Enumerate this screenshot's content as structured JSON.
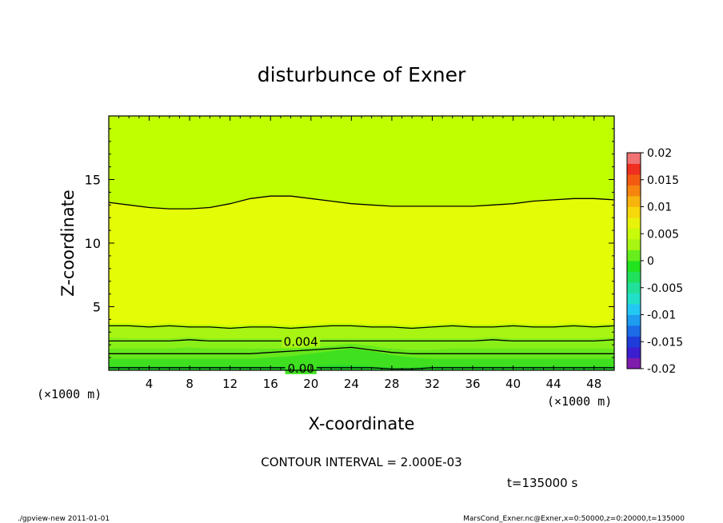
{
  "chart_data": {
    "type": "heatmap",
    "title": "disturbunce of Exner",
    "xlabel": "X-coordinate",
    "ylabel": "Z-coordinate",
    "x_unit_left": "(×1000 m)",
    "x_unit_right": "(×1000 m)",
    "xlim": [
      0,
      50
    ],
    "ylim": [
      0,
      20
    ],
    "x_ticks": [
      "4",
      "8",
      "12",
      "16",
      "20",
      "24",
      "28",
      "32",
      "36",
      "40",
      "44",
      "48"
    ],
    "y_ticks": [
      "5",
      "10",
      "15"
    ],
    "contour_interval_text": "CONTOUR INTERVAL = 2.000E-03",
    "time_text": "t=135000 s",
    "footer_left": "./gpview-new   2011-01-01",
    "footer_right": "MarsCond_Exner.nc@Exner,x=0:50000,z=0:20000,t=135000",
    "contour_labels": [
      "0.004",
      "0.00"
    ],
    "colorbar": {
      "labels": [
        "0.02",
        "0.015",
        "0.01",
        "0.005",
        "0",
        "-0.005",
        "-0.01",
        "-0.015",
        "-0.02"
      ],
      "levels": [
        -0.02,
        -0.015,
        -0.01,
        -0.005,
        0,
        0.005,
        0.01,
        0.015,
        0.02
      ],
      "colors": [
        "#7f1cae",
        "#3b1ecf",
        "#1e3cd9",
        "#1b6ce6",
        "#1d9cf0",
        "#22c8f2",
        "#22e0c8",
        "#22e09a",
        "#20e05c",
        "#22e21e",
        "#66ee1c",
        "#a8f412",
        "#c8fa0a",
        "#e8f20a",
        "#f6d80c",
        "#f7b40e",
        "#f5850f",
        "#f25a12",
        "#ef3020",
        "#f07272"
      ]
    },
    "bands": [
      {
        "level": 0.006,
        "color": "#f1ff04",
        "z_top": [
          8.8,
          8.6,
          8.2,
          7.7,
          7.8,
          7.9,
          8.0,
          8.4,
          9.5,
          9.0,
          8.6,
          8.5,
          8.4,
          8.6,
          8.7,
          8.8,
          8.7,
          8.6,
          8.4,
          8.6,
          9.0,
          9.4,
          9.6,
          9.7,
          9.5,
          9.3
        ],
        "z_bottom": [
          4.5,
          4.5,
          4.4,
          4.5,
          4.4,
          4.4,
          4.3,
          4.4,
          4.4,
          4.3,
          4.4,
          4.5,
          4.5,
          4.4,
          4.4,
          4.3,
          4.4,
          4.5,
          4.4,
          4.4,
          4.5,
          4.4,
          4.4,
          4.5,
          4.4,
          4.4
        ]
      },
      {
        "level": 0.005,
        "color": "#e4fc06",
        "z_top": [
          13.2,
          13.0,
          12.8,
          12.7,
          12.7,
          12.8,
          13.1,
          13.5,
          13.7,
          13.7,
          13.5,
          13.3,
          13.1,
          13.0,
          12.9,
          12.9,
          12.9,
          12.9,
          12.9,
          13.0,
          13.1,
          13.3,
          13.4,
          13.5,
          13.5,
          13.4
        ],
        "z_bottom": [
          3.7,
          3.7,
          3.6,
          3.7,
          3.6,
          3.6,
          3.5,
          3.6,
          3.6,
          3.5,
          3.6,
          3.7,
          3.7,
          3.6,
          3.6,
          3.5,
          3.6,
          3.7,
          3.6,
          3.6,
          3.7,
          3.6,
          3.6,
          3.7,
          3.6,
          3.7
        ]
      },
      {
        "level": 0.004,
        "color": "#a8f412",
        "z": [
          3.5,
          3.5,
          3.4,
          3.5,
          3.4,
          3.4,
          3.3,
          3.4,
          3.4,
          3.3,
          3.4,
          3.5,
          3.5,
          3.4,
          3.4,
          3.3,
          3.4,
          3.5,
          3.4,
          3.4,
          3.5,
          3.4,
          3.4,
          3.5,
          3.4,
          3.5
        ]
      },
      {
        "level": 0.003,
        "color": "#88ef18",
        "z": [
          2.6,
          2.5,
          2.5,
          2.5,
          2.6,
          2.5,
          2.5,
          2.5,
          2.5,
          2.5,
          2.5,
          2.5,
          2.5,
          2.5,
          2.5,
          2.5,
          2.5,
          2.5,
          2.5,
          2.6,
          2.5,
          2.5,
          2.5,
          2.5,
          2.5,
          2.6
        ]
      },
      {
        "level": 0.002,
        "color": "#66e81c",
        "z": [
          1.7,
          1.7,
          1.7,
          1.7,
          1.8,
          1.7,
          1.7,
          1.7,
          1.7,
          1.7,
          1.8,
          1.9,
          2.1,
          1.9,
          1.7,
          1.6,
          1.6,
          1.7,
          1.7,
          1.7,
          1.7,
          1.7,
          1.7,
          1.7,
          1.7,
          1.7
        ]
      },
      {
        "level": 0.001,
        "color": "#3fe020",
        "z": [
          0.9,
          0.9,
          0.9,
          0.9,
          0.9,
          0.9,
          0.9,
          0.9,
          1.0,
          1.1,
          1.3,
          1.5,
          1.7,
          1.5,
          1.2,
          1.0,
          0.9,
          0.9,
          0.9,
          0.9,
          0.9,
          0.9,
          0.9,
          0.9,
          0.9,
          0.9
        ]
      },
      {
        "level": 0.0,
        "color": "#22d82a",
        "z": [
          0.3,
          0.3,
          0.3,
          0.3,
          0.3,
          0.3,
          0.3,
          0.3,
          0.3,
          0.3,
          0.3,
          0.4,
          0.4,
          0.3,
          0.2,
          0.2,
          0.3,
          0.3,
          0.3,
          0.3,
          0.3,
          0.3,
          0.3,
          0.3,
          0.3,
          0.3
        ]
      }
    ],
    "background_color": "#bfff00",
    "contours": [
      {
        "level": 0.006,
        "z": [
          13.2,
          13.0,
          12.8,
          12.7,
          12.7,
          12.8,
          13.1,
          13.5,
          13.7,
          13.7,
          13.5,
          13.3,
          13.1,
          13.0,
          12.9,
          12.9,
          12.9,
          12.9,
          12.9,
          13.0,
          13.1,
          13.3,
          13.4,
          13.5,
          13.5,
          13.4
        ]
      },
      {
        "level": 0.004,
        "z": [
          3.5,
          3.5,
          3.4,
          3.5,
          3.4,
          3.4,
          3.3,
          3.4,
          3.4,
          3.3,
          3.4,
          3.5,
          3.5,
          3.4,
          3.4,
          3.3,
          3.4,
          3.5,
          3.4,
          3.4,
          3.5,
          3.4,
          3.4,
          3.5,
          3.4,
          3.5
        ]
      },
      {
        "level": 0.002,
        "z": [
          2.3,
          2.3,
          2.3,
          2.3,
          2.4,
          2.3,
          2.3,
          2.3,
          2.3,
          2.3,
          2.3,
          2.3,
          2.3,
          2.3,
          2.3,
          2.3,
          2.3,
          2.3,
          2.3,
          2.4,
          2.3,
          2.3,
          2.3,
          2.3,
          2.3,
          2.4
        ]
      },
      {
        "level": 0.001,
        "z": [
          1.3,
          1.3,
          1.3,
          1.3,
          1.3,
          1.3,
          1.3,
          1.3,
          1.4,
          1.5,
          1.6,
          1.7,
          1.8,
          1.6,
          1.4,
          1.3,
          1.3,
          1.3,
          1.3,
          1.3,
          1.3,
          1.3,
          1.3,
          1.3,
          1.3,
          1.3
        ]
      },
      {
        "level": 0.0,
        "z": [
          0.2,
          0.2,
          0.2,
          0.2,
          0.2,
          0.2,
          0.2,
          0.2,
          0.2,
          0.2,
          0.2,
          0.2,
          0.2,
          0.2,
          0.1,
          0.1,
          0.2,
          0.2,
          0.2,
          0.2,
          0.2,
          0.2,
          0.2,
          0.2,
          0.2,
          0.2
        ]
      }
    ]
  }
}
